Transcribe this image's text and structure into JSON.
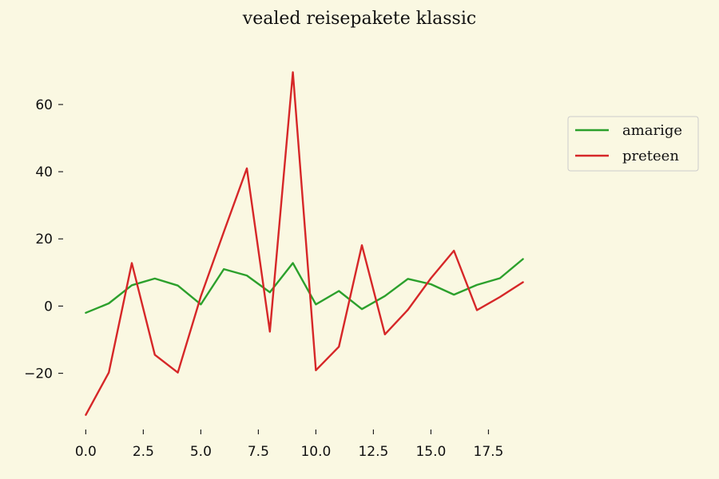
{
  "chart_data": {
    "type": "line",
    "title": "vealed reisepakete klassic",
    "xlabel": "",
    "ylabel": "",
    "xlim": [
      -0.95,
      19.95
    ],
    "ylim": [
      -36.5,
      74
    ],
    "x_ticks": [
      0.0,
      2.5,
      5.0,
      7.5,
      10.0,
      12.5,
      15.0,
      17.5
    ],
    "x_tick_labels": [
      "0.0",
      "2.5",
      "5.0",
      "7.5",
      "10.0",
      "12.5",
      "15.0",
      "17.5"
    ],
    "y_ticks": [
      -20,
      0,
      20,
      40,
      60
    ],
    "y_tick_labels": [
      "−20",
      "0",
      "20",
      "40",
      "60"
    ],
    "grid": false,
    "legend_position": "right",
    "x": [
      0,
      1,
      2,
      3,
      4,
      5,
      6,
      7,
      8,
      9,
      10,
      11,
      12,
      13,
      14,
      15,
      16,
      17,
      18,
      19
    ],
    "series": [
      {
        "name": "amarige",
        "color": "#2ca02c",
        "values": [
          -2.0,
          0.8,
          6.2,
          8.2,
          6.1,
          0.5,
          11.0,
          9.1,
          4.1,
          12.8,
          0.5,
          4.5,
          -0.9,
          3.0,
          8.1,
          6.5,
          3.4,
          6.3,
          8.3,
          14.0
        ]
      },
      {
        "name": "preteen",
        "color": "#d62728",
        "values": [
          -32.4,
          -19.8,
          12.8,
          -14.5,
          -19.8,
          2.9,
          22.1,
          41.0,
          -7.6,
          69.6,
          -19.1,
          -12.1,
          18.1,
          -8.4,
          -1.1,
          8.3,
          16.5,
          -1.2,
          2.7,
          7.1
        ]
      }
    ]
  }
}
